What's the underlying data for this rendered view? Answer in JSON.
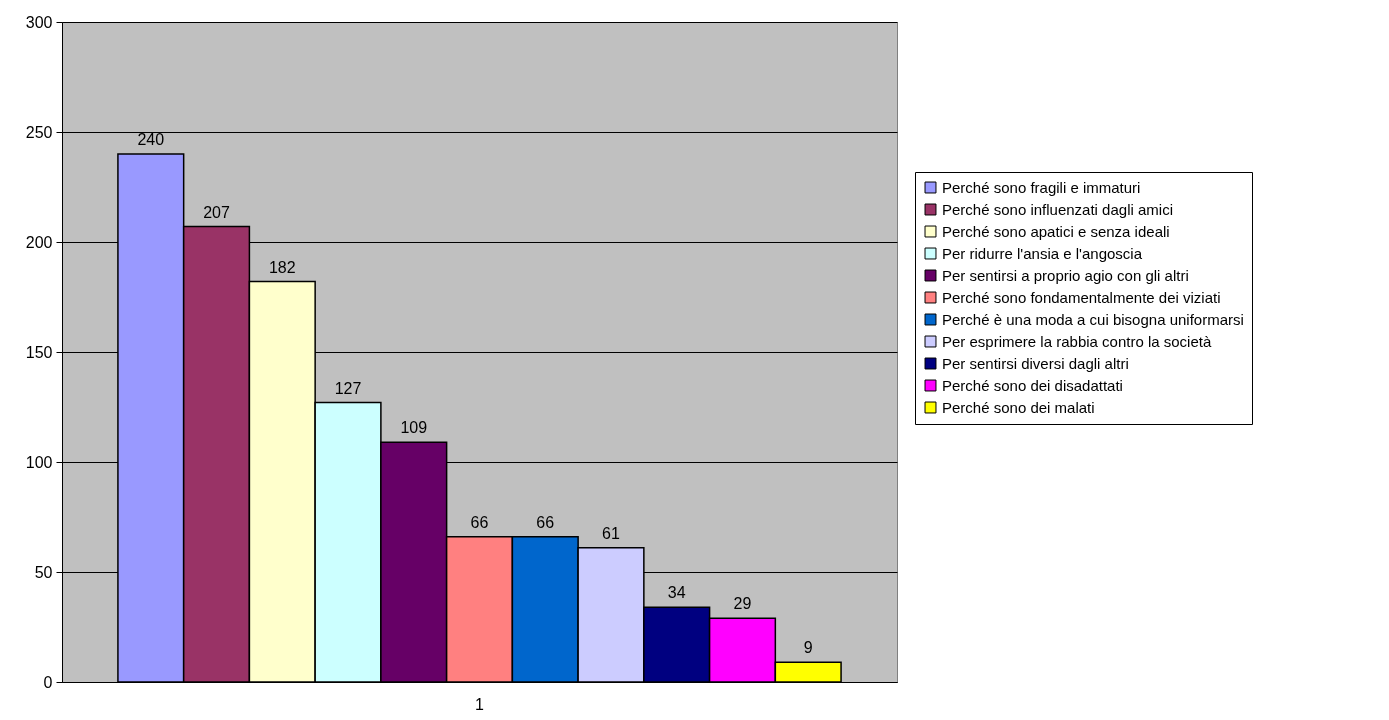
{
  "chart_data": {
    "type": "bar",
    "categories": [
      "1"
    ],
    "series": [
      {
        "name": "Perché sono fragili e immaturi",
        "color": "#9999ff",
        "values": [
          240
        ]
      },
      {
        "name": "Perché sono influenzati dagli amici",
        "color": "#993366",
        "values": [
          207
        ]
      },
      {
        "name": "Perché sono apatici e senza ideali",
        "color": "#ffffcc",
        "values": [
          182
        ]
      },
      {
        "name": "Per ridurre l'ansia e l'angoscia",
        "color": "#ccffff",
        "values": [
          127
        ]
      },
      {
        "name": "Per sentirsi a proprio agio con gli altri",
        "color": "#660066",
        "values": [
          109
        ]
      },
      {
        "name": "Perché sono fondamentalmente dei viziati",
        "color": "#ff8080",
        "values": [
          66
        ]
      },
      {
        "name": "Perché è una moda a cui bisogna uniformarsi",
        "color": "#0066cc",
        "values": [
          66
        ]
      },
      {
        "name": "Per esprimere la rabbia contro la società",
        "color": "#ccccff",
        "values": [
          61
        ]
      },
      {
        "name": "Per sentirsi diversi dagli altri",
        "color": "#000080",
        "values": [
          34
        ]
      },
      {
        "name": "Perché sono dei disadattati",
        "color": "#ff00ff",
        "values": [
          29
        ]
      },
      {
        "name": "Perché sono dei malati",
        "color": "#ffff00",
        "values": [
          9
        ]
      }
    ],
    "ylim": [
      0,
      300
    ],
    "yticks": [
      0,
      50,
      100,
      150,
      200,
      250,
      300
    ],
    "grid": "y",
    "legend": "right",
    "data_labels": true
  }
}
